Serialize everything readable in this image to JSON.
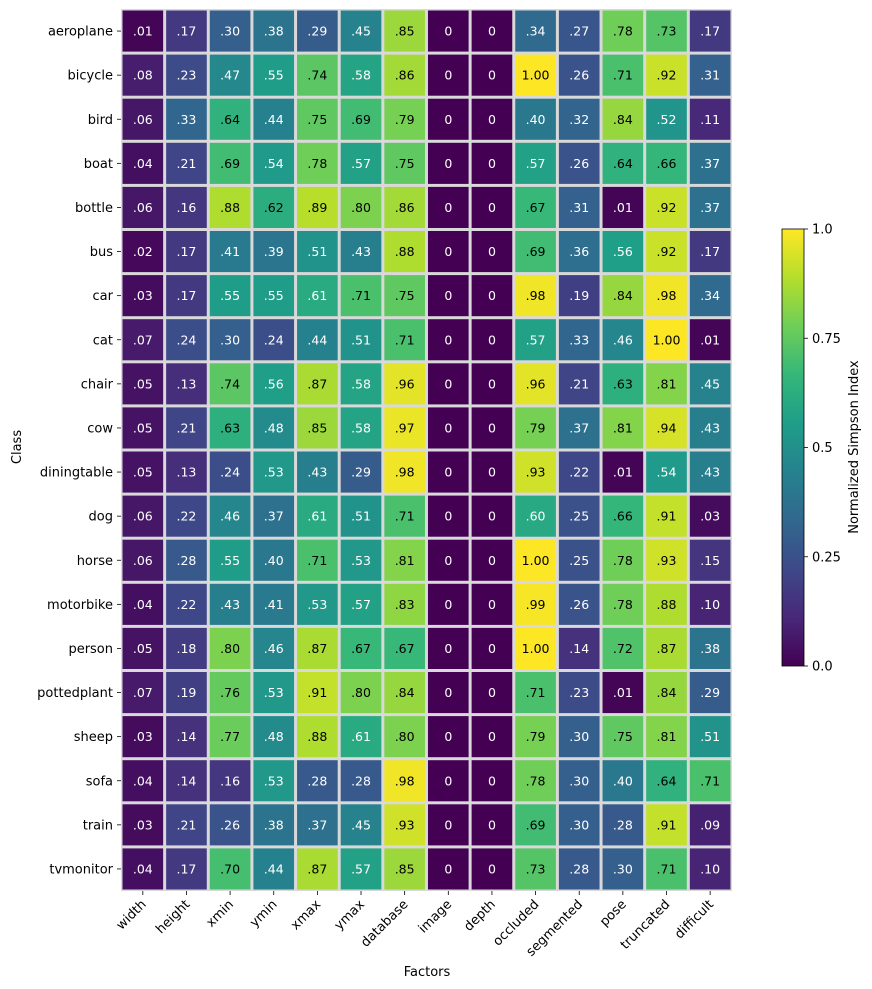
{
  "chart_data": {
    "type": "heatmap",
    "title": "",
    "xlabel": "Factors",
    "ylabel": "Class",
    "x_categories": [
      "width",
      "height",
      "xmin",
      "ymin",
      "xmax",
      "ymax",
      "database",
      "image",
      "depth",
      "occluded",
      "segmented",
      "pose",
      "truncated",
      "difficult"
    ],
    "y_categories": [
      "aeroplane",
      "bicycle",
      "bird",
      "boat",
      "bottle",
      "bus",
      "car",
      "cat",
      "chair",
      "cow",
      "diningtable",
      "dog",
      "horse",
      "motorbike",
      "person",
      "pottedplant",
      "sheep",
      "sofa",
      "train",
      "tvmonitor"
    ],
    "values": [
      [
        0.01,
        0.17,
        0.3,
        0.38,
        0.29,
        0.45,
        0.85,
        0,
        0,
        0.34,
        0.27,
        0.78,
        0.73,
        0.17
      ],
      [
        0.08,
        0.23,
        0.47,
        0.55,
        0.74,
        0.58,
        0.86,
        0,
        0,
        1.0,
        0.26,
        0.71,
        0.92,
        0.31
      ],
      [
        0.06,
        0.33,
        0.64,
        0.44,
        0.75,
        0.69,
        0.79,
        0,
        0,
        0.4,
        0.32,
        0.84,
        0.52,
        0.11
      ],
      [
        0.04,
        0.21,
        0.69,
        0.54,
        0.78,
        0.57,
        0.75,
        0,
        0,
        0.57,
        0.26,
        0.64,
        0.66,
        0.37
      ],
      [
        0.06,
        0.16,
        0.88,
        0.62,
        0.89,
        0.8,
        0.86,
        0,
        0,
        0.67,
        0.31,
        0.01,
        0.92,
        0.37
      ],
      [
        0.02,
        0.17,
        0.41,
        0.39,
        0.51,
        0.43,
        0.88,
        0,
        0,
        0.69,
        0.36,
        0.56,
        0.92,
        0.17
      ],
      [
        0.03,
        0.17,
        0.55,
        0.55,
        0.61,
        0.71,
        0.75,
        0,
        0,
        0.98,
        0.19,
        0.84,
        0.98,
        0.34
      ],
      [
        0.07,
        0.24,
        0.3,
        0.24,
        0.44,
        0.51,
        0.71,
        0,
        0,
        0.57,
        0.33,
        0.46,
        1.0,
        0.01
      ],
      [
        0.05,
        0.13,
        0.74,
        0.56,
        0.87,
        0.58,
        0.96,
        0,
        0,
        0.96,
        0.21,
        0.63,
        0.81,
        0.45
      ],
      [
        0.05,
        0.21,
        0.63,
        0.48,
        0.85,
        0.58,
        0.97,
        0,
        0,
        0.79,
        0.37,
        0.81,
        0.94,
        0.43
      ],
      [
        0.05,
        0.13,
        0.24,
        0.53,
        0.43,
        0.29,
        0.98,
        0,
        0,
        0.93,
        0.22,
        0.01,
        0.54,
        0.43
      ],
      [
        0.06,
        0.22,
        0.46,
        0.37,
        0.61,
        0.51,
        0.71,
        0,
        0,
        0.6,
        0.25,
        0.66,
        0.91,
        0.03
      ],
      [
        0.06,
        0.28,
        0.55,
        0.4,
        0.71,
        0.53,
        0.81,
        0,
        0,
        1.0,
        0.25,
        0.78,
        0.93,
        0.15
      ],
      [
        0.04,
        0.22,
        0.43,
        0.41,
        0.53,
        0.57,
        0.83,
        0,
        0,
        0.99,
        0.26,
        0.78,
        0.88,
        0.1
      ],
      [
        0.05,
        0.18,
        0.8,
        0.46,
        0.87,
        0.67,
        0.67,
        0,
        0,
        1.0,
        0.14,
        0.72,
        0.87,
        0.38
      ],
      [
        0.07,
        0.19,
        0.76,
        0.53,
        0.91,
        0.8,
        0.84,
        0,
        0,
        0.71,
        0.23,
        0.01,
        0.84,
        0.29
      ],
      [
        0.03,
        0.14,
        0.77,
        0.48,
        0.88,
        0.61,
        0.8,
        0,
        0,
        0.79,
        0.3,
        0.75,
        0.81,
        0.51
      ],
      [
        0.04,
        0.14,
        0.16,
        0.53,
        0.28,
        0.28,
        0.98,
        0,
        0,
        0.78,
        0.3,
        0.4,
        0.64,
        0.71
      ],
      [
        0.03,
        0.21,
        0.26,
        0.38,
        0.37,
        0.45,
        0.93,
        0,
        0,
        0.69,
        0.3,
        0.28,
        0.91,
        0.09
      ],
      [
        0.04,
        0.17,
        0.7,
        0.44,
        0.87,
        0.57,
        0.85,
        0,
        0,
        0.73,
        0.28,
        0.3,
        0.71,
        0.1
      ]
    ],
    "value_labels": [
      [
        ".01",
        ".17",
        ".30",
        ".38",
        ".29",
        ".45",
        ".85",
        "0",
        "0",
        ".34",
        ".27",
        ".78",
        ".73",
        ".17"
      ],
      [
        ".08",
        ".23",
        ".47",
        ".55",
        ".74",
        ".58",
        ".86",
        "0",
        "0",
        "1.00",
        ".26",
        ".71",
        ".92",
        ".31"
      ],
      [
        ".06",
        ".33",
        ".64",
        ".44",
        ".75",
        ".69",
        ".79",
        "0",
        "0",
        ".40",
        ".32",
        ".84",
        ".52",
        ".11"
      ],
      [
        ".04",
        ".21",
        ".69",
        ".54",
        ".78",
        ".57",
        ".75",
        "0",
        "0",
        ".57",
        ".26",
        ".64",
        ".66",
        ".37"
      ],
      [
        ".06",
        ".16",
        ".88",
        ".62",
        ".89",
        ".80",
        ".86",
        "0",
        "0",
        ".67",
        ".31",
        ".01",
        ".92",
        ".37"
      ],
      [
        ".02",
        ".17",
        ".41",
        ".39",
        ".51",
        ".43",
        ".88",
        "0",
        "0",
        ".69",
        ".36",
        ".56",
        ".92",
        ".17"
      ],
      [
        ".03",
        ".17",
        ".55",
        ".55",
        ".61",
        ".71",
        ".75",
        "0",
        "0",
        ".98",
        ".19",
        ".84",
        ".98",
        ".34"
      ],
      [
        ".07",
        ".24",
        ".30",
        ".24",
        ".44",
        ".51",
        ".71",
        "0",
        "0",
        ".57",
        ".33",
        ".46",
        "1.00",
        ".01"
      ],
      [
        ".05",
        ".13",
        ".74",
        ".56",
        ".87",
        ".58",
        ".96",
        "0",
        "0",
        ".96",
        ".21",
        ".63",
        ".81",
        ".45"
      ],
      [
        ".05",
        ".21",
        ".63",
        ".48",
        ".85",
        ".58",
        ".97",
        "0",
        "0",
        ".79",
        ".37",
        ".81",
        ".94",
        ".43"
      ],
      [
        ".05",
        ".13",
        ".24",
        ".53",
        ".43",
        ".29",
        ".98",
        "0",
        "0",
        ".93",
        ".22",
        ".01",
        ".54",
        ".43"
      ],
      [
        ".06",
        ".22",
        ".46",
        ".37",
        ".61",
        ".51",
        ".71",
        "0",
        "0",
        ".60",
        ".25",
        ".66",
        ".91",
        ".03"
      ],
      [
        ".06",
        ".28",
        ".55",
        ".40",
        ".71",
        ".53",
        ".81",
        "0",
        "0",
        "1.00",
        ".25",
        ".78",
        ".93",
        ".15"
      ],
      [
        ".04",
        ".22",
        ".43",
        ".41",
        ".53",
        ".57",
        ".83",
        "0",
        "0",
        ".99",
        ".26",
        ".78",
        ".88",
        ".10"
      ],
      [
        ".05",
        ".18",
        ".80",
        ".46",
        ".87",
        ".67",
        ".67",
        "0",
        "0",
        "1.00",
        ".14",
        ".72",
        ".87",
        ".38"
      ],
      [
        ".07",
        ".19",
        ".76",
        ".53",
        ".91",
        ".80",
        ".84",
        "0",
        "0",
        ".71",
        ".23",
        ".01",
        ".84",
        ".29"
      ],
      [
        ".03",
        ".14",
        ".77",
        ".48",
        ".88",
        ".61",
        ".80",
        "0",
        "0",
        ".79",
        ".30",
        ".75",
        ".81",
        ".51"
      ],
      [
        ".04",
        ".14",
        ".16",
        ".53",
        ".28",
        ".28",
        ".98",
        "0",
        "0",
        ".78",
        ".30",
        ".40",
        ".64",
        ".71"
      ],
      [
        ".03",
        ".21",
        ".26",
        ".38",
        ".37",
        ".45",
        ".93",
        "0",
        "0",
        ".69",
        ".30",
        ".28",
        ".91",
        ".09"
      ],
      [
        ".04",
        ".17",
        ".70",
        ".44",
        ".87",
        ".57",
        ".85",
        "0",
        "0",
        ".73",
        ".28",
        ".30",
        ".71",
        ".10"
      ]
    ],
    "colormap": "viridis",
    "vlim": [
      0,
      1
    ],
    "colorbar": {
      "label": "Normalized Simpson Index",
      "ticks": [
        0,
        0.25,
        0.5,
        0.75,
        1
      ],
      "tick_labels": [
        "0.0",
        "0.25",
        "0.5",
        "0.75",
        "1.0"
      ],
      "placement": "right"
    },
    "cell_border_color": "#d9d9d9",
    "grid": false
  }
}
